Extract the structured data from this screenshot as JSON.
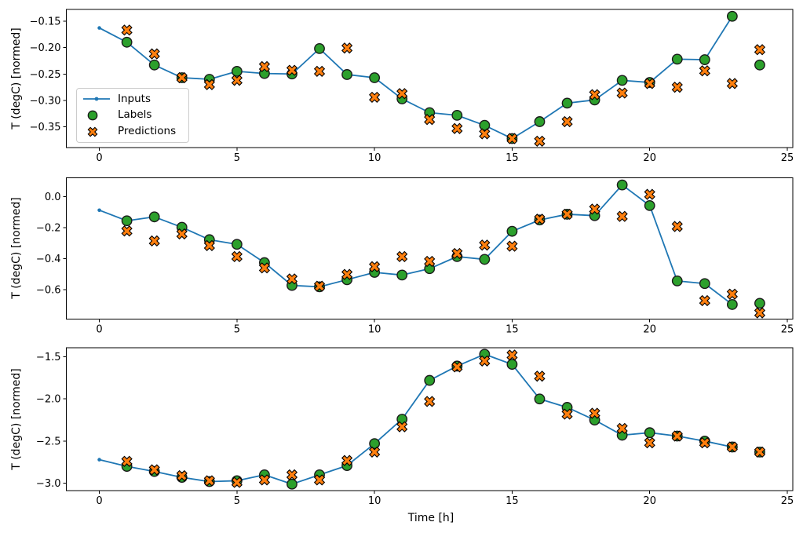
{
  "figure": {
    "background": "#ffffff",
    "colors": {
      "inputs": "#1f77b4",
      "labels": "#2ca02c",
      "predictions": "#ff7f0e",
      "marker_edge": "#000000",
      "legend_border": "#cccccc"
    },
    "legend": {
      "position": "upper-left-inset",
      "items": [
        {
          "label": "Inputs"
        },
        {
          "label": "Labels"
        },
        {
          "label": "Predictions"
        }
      ]
    },
    "x_axis": {
      "label": "Time [h]",
      "ticks": [
        0,
        5,
        10,
        15,
        20,
        25
      ]
    }
  },
  "chart_data": [
    {
      "type": "line",
      "title": "",
      "ylabel": "T (degC) [normed]",
      "xlabel": "",
      "grid": false,
      "xlim": [
        -1.2,
        25.2
      ],
      "ylim": [
        -0.389,
        -0.128
      ],
      "xticks": [
        {
          "v": 0,
          "label": "0"
        },
        {
          "v": 5,
          "label": "5"
        },
        {
          "v": 10,
          "label": "10"
        },
        {
          "v": 15,
          "label": "15"
        },
        {
          "v": 20,
          "label": "20"
        },
        {
          "v": 25,
          "label": "25"
        }
      ],
      "yticks": [
        {
          "v": -0.15,
          "label": "−0.15"
        },
        {
          "v": -0.2,
          "label": "−0.20"
        },
        {
          "v": -0.25,
          "label": "−0.25"
        },
        {
          "v": -0.3,
          "label": "−0.30"
        },
        {
          "v": -0.35,
          "label": "−0.35"
        }
      ],
      "series": [
        {
          "name": "Inputs",
          "style": "line-with-dot-markers",
          "color": "#1f77b4",
          "x": [
            0,
            1,
            2,
            3,
            4,
            5,
            6,
            7,
            8,
            9,
            10,
            11,
            12,
            13,
            14,
            15,
            16,
            17,
            18,
            19,
            20,
            21,
            22,
            23
          ],
          "y": [
            -0.163,
            -0.19,
            -0.233,
            -0.257,
            -0.26,
            -0.245,
            -0.249,
            -0.25,
            -0.202,
            -0.251,
            -0.257,
            -0.297,
            -0.323,
            -0.328,
            -0.347,
            -0.372,
            -0.34,
            -0.305,
            -0.299,
            -0.262,
            -0.266,
            -0.222,
            -0.223,
            -0.141
          ]
        },
        {
          "name": "Labels",
          "style": "circle-scatter",
          "color": "#2ca02c",
          "edge": "#000000",
          "x": [
            1,
            2,
            3,
            4,
            5,
            6,
            7,
            8,
            9,
            10,
            11,
            12,
            13,
            14,
            15,
            16,
            17,
            18,
            19,
            20,
            21,
            22,
            23,
            24
          ],
          "y": [
            -0.19,
            -0.233,
            -0.257,
            -0.26,
            -0.245,
            -0.249,
            -0.25,
            -0.202,
            -0.251,
            -0.257,
            -0.297,
            -0.323,
            -0.328,
            -0.347,
            -0.372,
            -0.34,
            -0.305,
            -0.299,
            -0.262,
            -0.266,
            -0.222,
            -0.223,
            -0.141,
            -0.233
          ]
        },
        {
          "name": "Predictions",
          "style": "x-scatter",
          "color": "#ff7f0e",
          "edge": "#000000",
          "x": [
            1,
            2,
            3,
            4,
            5,
            6,
            7,
            8,
            9,
            10,
            11,
            12,
            13,
            14,
            15,
            16,
            17,
            18,
            19,
            20,
            21,
            22,
            23,
            24
          ],
          "y": [
            -0.167,
            -0.212,
            -0.257,
            -0.27,
            -0.262,
            -0.236,
            -0.243,
            -0.245,
            -0.201,
            -0.294,
            -0.287,
            -0.336,
            -0.353,
            -0.363,
            -0.372,
            -0.377,
            -0.34,
            -0.289,
            -0.286,
            -0.268,
            -0.275,
            -0.244,
            -0.268,
            -0.204
          ]
        }
      ]
    },
    {
      "type": "line",
      "title": "",
      "ylabel": "T (degC) [normed]",
      "xlabel": "",
      "grid": false,
      "xlim": [
        -1.2,
        25.2
      ],
      "ylim": [
        -0.789,
        0.122
      ],
      "xticks": [
        {
          "v": 0,
          "label": "0"
        },
        {
          "v": 5,
          "label": "5"
        },
        {
          "v": 10,
          "label": "10"
        },
        {
          "v": 15,
          "label": "15"
        },
        {
          "v": 20,
          "label": "20"
        },
        {
          "v": 25,
          "label": "25"
        }
      ],
      "yticks": [
        {
          "v": 0.0,
          "label": "0.0"
        },
        {
          "v": -0.2,
          "label": "−0.2"
        },
        {
          "v": -0.4,
          "label": "−0.4"
        },
        {
          "v": -0.6,
          "label": "−0.6"
        }
      ],
      "series": [
        {
          "name": "Inputs",
          "style": "line-with-dot-markers",
          "color": "#1f77b4",
          "x": [
            0,
            1,
            2,
            3,
            4,
            5,
            6,
            7,
            8,
            9,
            10,
            11,
            12,
            13,
            14,
            15,
            16,
            17,
            18,
            19,
            20,
            21,
            22,
            23
          ],
          "y": [
            -0.087,
            -0.155,
            -0.13,
            -0.197,
            -0.277,
            -0.307,
            -0.425,
            -0.572,
            -0.581,
            -0.535,
            -0.488,
            -0.505,
            -0.464,
            -0.386,
            -0.404,
            -0.223,
            -0.15,
            -0.113,
            -0.122,
            0.076,
            -0.057,
            -0.543,
            -0.56,
            -0.695
          ]
        },
        {
          "name": "Labels",
          "style": "circle-scatter",
          "color": "#2ca02c",
          "edge": "#000000",
          "x": [
            1,
            2,
            3,
            4,
            5,
            6,
            7,
            8,
            9,
            10,
            11,
            12,
            13,
            14,
            15,
            16,
            17,
            18,
            19,
            20,
            21,
            22,
            23,
            24
          ],
          "y": [
            -0.155,
            -0.13,
            -0.197,
            -0.277,
            -0.307,
            -0.425,
            -0.572,
            -0.581,
            -0.535,
            -0.488,
            -0.505,
            -0.464,
            -0.386,
            -0.404,
            -0.223,
            -0.15,
            -0.113,
            -0.122,
            0.076,
            -0.057,
            -0.543,
            -0.56,
            -0.695,
            -0.687
          ]
        },
        {
          "name": "Predictions",
          "style": "x-scatter",
          "color": "#ff7f0e",
          "edge": "#000000",
          "x": [
            1,
            2,
            3,
            4,
            5,
            6,
            7,
            8,
            9,
            10,
            11,
            12,
            13,
            14,
            15,
            16,
            17,
            18,
            19,
            20,
            21,
            22,
            23,
            24
          ],
          "y": [
            -0.221,
            -0.285,
            -0.24,
            -0.315,
            -0.386,
            -0.459,
            -0.53,
            -0.577,
            -0.501,
            -0.451,
            -0.386,
            -0.417,
            -0.366,
            -0.312,
            -0.319,
            -0.145,
            -0.113,
            -0.08,
            -0.127,
            0.015,
            -0.192,
            -0.67,
            -0.628,
            -0.749
          ]
        }
      ]
    },
    {
      "type": "line",
      "title": "",
      "ylabel": "T (degC) [normed]",
      "xlabel": "Time [h]",
      "grid": false,
      "xlim": [
        -1.2,
        25.2
      ],
      "ylim": [
        -3.087,
        -1.393
      ],
      "xticks": [
        {
          "v": 0,
          "label": "0"
        },
        {
          "v": 5,
          "label": "5"
        },
        {
          "v": 10,
          "label": "10"
        },
        {
          "v": 15,
          "label": "15"
        },
        {
          "v": 20,
          "label": "20"
        },
        {
          "v": 25,
          "label": "25"
        }
      ],
      "yticks": [
        {
          "v": -1.5,
          "label": "−1.5"
        },
        {
          "v": -2.0,
          "label": "−2.0"
        },
        {
          "v": -2.5,
          "label": "−2.5"
        },
        {
          "v": -3.0,
          "label": "−3.0"
        }
      ],
      "series": [
        {
          "name": "Inputs",
          "style": "line-with-dot-markers",
          "color": "#1f77b4",
          "x": [
            0,
            1,
            2,
            3,
            4,
            5,
            6,
            7,
            8,
            9,
            10,
            11,
            12,
            13,
            14,
            15,
            16,
            17,
            18,
            19,
            20,
            21,
            22,
            23
          ],
          "y": [
            -2.72,
            -2.8,
            -2.86,
            -2.93,
            -2.98,
            -2.97,
            -2.9,
            -3.01,
            -2.9,
            -2.79,
            -2.53,
            -2.24,
            -1.78,
            -1.61,
            -1.47,
            -1.59,
            -2.0,
            -2.1,
            -2.25,
            -2.43,
            -2.4,
            -2.44,
            -2.5,
            -2.57
          ]
        },
        {
          "name": "Labels",
          "style": "circle-scatter",
          "color": "#2ca02c",
          "edge": "#000000",
          "x": [
            1,
            2,
            3,
            4,
            5,
            6,
            7,
            8,
            9,
            10,
            11,
            12,
            13,
            14,
            15,
            16,
            17,
            18,
            19,
            20,
            21,
            22,
            23,
            24
          ],
          "y": [
            -2.8,
            -2.86,
            -2.93,
            -2.98,
            -2.97,
            -2.9,
            -3.01,
            -2.9,
            -2.79,
            -2.53,
            -2.24,
            -1.78,
            -1.61,
            -1.47,
            -1.59,
            -2.0,
            -2.1,
            -2.25,
            -2.43,
            -2.4,
            -2.44,
            -2.5,
            -2.57,
            -2.63
          ]
        },
        {
          "name": "Predictions",
          "style": "x-scatter",
          "color": "#ff7f0e",
          "edge": "#000000",
          "x": [
            1,
            2,
            3,
            4,
            5,
            6,
            7,
            8,
            9,
            10,
            11,
            12,
            13,
            14,
            15,
            16,
            17,
            18,
            19,
            20,
            21,
            22,
            23,
            24
          ],
          "y": [
            -2.74,
            -2.84,
            -2.91,
            -2.97,
            -2.99,
            -2.96,
            -2.9,
            -2.96,
            -2.73,
            -2.63,
            -2.33,
            -2.03,
            -1.62,
            -1.55,
            -1.48,
            -1.73,
            -2.18,
            -2.17,
            -2.35,
            -2.52,
            -2.44,
            -2.52,
            -2.57,
            -2.63
          ]
        }
      ]
    }
  ]
}
